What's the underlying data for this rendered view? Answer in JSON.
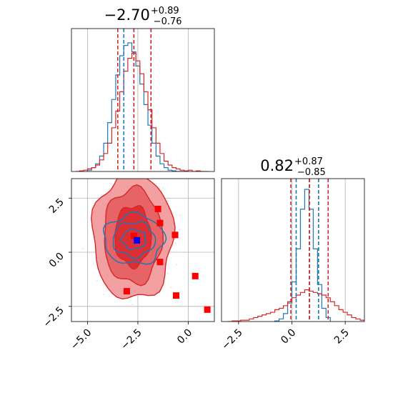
{
  "chart_data": [
    {
      "type": "histogram",
      "panel": "marginal-param1",
      "title": {
        "median": "−2.70",
        "plus": "+0.89",
        "minus": "−0.76"
      },
      "xlim": [
        -5.8,
        1.3
      ],
      "series": [
        {
          "name": "",
          "color": "#1f77b4",
          "bin_edges": [
            -5.0,
            -4.8,
            -4.6,
            -4.4,
            -4.2,
            -4.0,
            -3.8,
            -3.6,
            -3.4,
            -3.2,
            -3.0,
            -2.8,
            -2.6,
            -2.4,
            -2.2,
            -2.0,
            -1.8,
            -1.6,
            -1.4,
            -1.2,
            -1.0,
            -0.8,
            -0.6,
            -0.4,
            -0.2
          ],
          "counts": [
            0.01,
            0.03,
            0.06,
            0.12,
            0.22,
            0.38,
            0.56,
            0.75,
            0.9,
            0.98,
            1.0,
            0.93,
            0.82,
            0.68,
            0.52,
            0.36,
            0.22,
            0.12,
            0.06,
            0.03,
            0.01,
            0.005,
            0.0,
            0.0
          ]
        },
        {
          "name": "",
          "color": "#d62728",
          "bin_edges": [
            -5.6,
            -5.4,
            -5.2,
            -5.0,
            -4.8,
            -4.6,
            -4.4,
            -4.2,
            -4.0,
            -3.8,
            -3.6,
            -3.4,
            -3.2,
            -3.0,
            -2.8,
            -2.6,
            -2.4,
            -2.2,
            -2.0,
            -1.8,
            -1.6,
            -1.4,
            -1.2,
            -1.0,
            -0.8,
            -0.6,
            -0.4,
            -0.2,
            0.0,
            0.2,
            0.4,
            0.6,
            0.8,
            1.0
          ],
          "counts": [
            0.0,
            0.005,
            0.01,
            0.02,
            0.03,
            0.05,
            0.09,
            0.14,
            0.22,
            0.34,
            0.47,
            0.62,
            0.78,
            0.88,
            0.92,
            0.86,
            0.76,
            0.62,
            0.48,
            0.34,
            0.22,
            0.14,
            0.08,
            0.05,
            0.03,
            0.02,
            0.01,
            0.005,
            0.01,
            0.0,
            0.005,
            0.0,
            0.0
          ]
        }
      ],
      "quantile_lines": [
        {
          "color": "#1f77b4",
          "values": [
            -3.2,
            -2.7,
            -1.85
          ]
        },
        {
          "color": "#d62728",
          "values": [
            -3.5,
            -2.7,
            -1.85
          ]
        }
      ]
    },
    {
      "type": "contour",
      "panel": "joint",
      "xlim": [
        -5.8,
        1.3
      ],
      "ylim": [
        -3.2,
        3.4
      ],
      "xticks": [
        "−5.0",
        "−2.5",
        "0.0"
      ],
      "yticks": [
        "−2.5",
        "0.0",
        "2.5"
      ],
      "xtick_values": [
        -5.0,
        -2.5,
        0.0
      ],
      "ytick_values": [
        -2.5,
        0.0,
        2.5
      ],
      "red_levels": [
        {
          "cx": -2.75,
          "cy": 0.75,
          "rx": 2.0,
          "ry": 2.95,
          "fill": "#f2a0a2"
        },
        {
          "cx": -2.75,
          "cy": 0.75,
          "rx": 1.45,
          "ry": 2.2,
          "fill": "#e66366"
        },
        {
          "cx": -2.75,
          "cy": 0.75,
          "rx": 0.9,
          "ry": 1.4,
          "fill": "#dc2f33"
        }
      ],
      "blue_levels": [
        {
          "cx": -2.7,
          "cy": 0.6,
          "rx": 1.5,
          "ry": 1.15
        },
        {
          "cx": -2.7,
          "cy": 0.6,
          "rx": 1.05,
          "ry": 0.8
        },
        {
          "cx": -2.7,
          "cy": 0.6,
          "rx": 0.6,
          "ry": 0.45
        }
      ],
      "red_points": [
        [
          -1.5,
          2.0
        ],
        [
          -1.4,
          1.35
        ],
        [
          -0.65,
          0.8
        ],
        [
          -1.4,
          -0.45
        ],
        [
          -3.05,
          -1.8
        ],
        [
          -0.6,
          -2.0
        ],
        [
          0.35,
          -1.1
        ],
        [
          0.95,
          -2.65
        ],
        [
          -2.7,
          0.75
        ]
      ],
      "blue_point": [
        -2.55,
        0.55
      ]
    },
    {
      "type": "histogram",
      "panel": "marginal-param2",
      "title": {
        "median": "0.82",
        "plus": "+0.87",
        "minus": "−0.85"
      },
      "xlim": [
        -3.3,
        3.4
      ],
      "xticks": [
        "−2.5",
        "0.0",
        "2.5"
      ],
      "xtick_values": [
        -2.5,
        0.0,
        2.5
      ],
      "series": [
        {
          "name": "",
          "color": "#1f77b4",
          "bin_edges": [
            -0.8,
            -0.6,
            -0.4,
            -0.2,
            0.0,
            0.2,
            0.4,
            0.6,
            0.8,
            1.0,
            1.2,
            1.4,
            1.6,
            1.8
          ],
          "counts": [
            0.005,
            0.02,
            0.06,
            0.14,
            0.3,
            0.55,
            0.85,
            1.0,
            0.85,
            0.55,
            0.28,
            0.1,
            0.03
          ]
        },
        {
          "name": "",
          "color": "#d62728",
          "bin_edges": [
            -3.0,
            -2.8,
            -2.6,
            -2.4,
            -2.2,
            -2.0,
            -1.8,
            -1.6,
            -1.4,
            -1.2,
            -1.0,
            -0.8,
            -0.6,
            -0.4,
            -0.2,
            0.0,
            0.2,
            0.4,
            0.6,
            0.8,
            1.0,
            1.2,
            1.4,
            1.6,
            1.8,
            2.0,
            2.2,
            2.4,
            2.6,
            2.8,
            3.0,
            3.2,
            3.4
          ],
          "counts": [
            0.0,
            0.005,
            0.005,
            0.01,
            0.01,
            0.02,
            0.03,
            0.04,
            0.05,
            0.06,
            0.07,
            0.09,
            0.1,
            0.12,
            0.15,
            0.18,
            0.2,
            0.22,
            0.24,
            0.23,
            0.22,
            0.21,
            0.2,
            0.18,
            0.15,
            0.12,
            0.09,
            0.07,
            0.05,
            0.03,
            0.02,
            0.01
          ]
        }
      ],
      "quantile_lines": [
        {
          "color": "#1f77b4",
          "values": [
            0.2,
            0.82,
            1.25
          ]
        },
        {
          "color": "#d62728",
          "values": [
            -0.05,
            0.82,
            1.7
          ]
        }
      ]
    }
  ]
}
